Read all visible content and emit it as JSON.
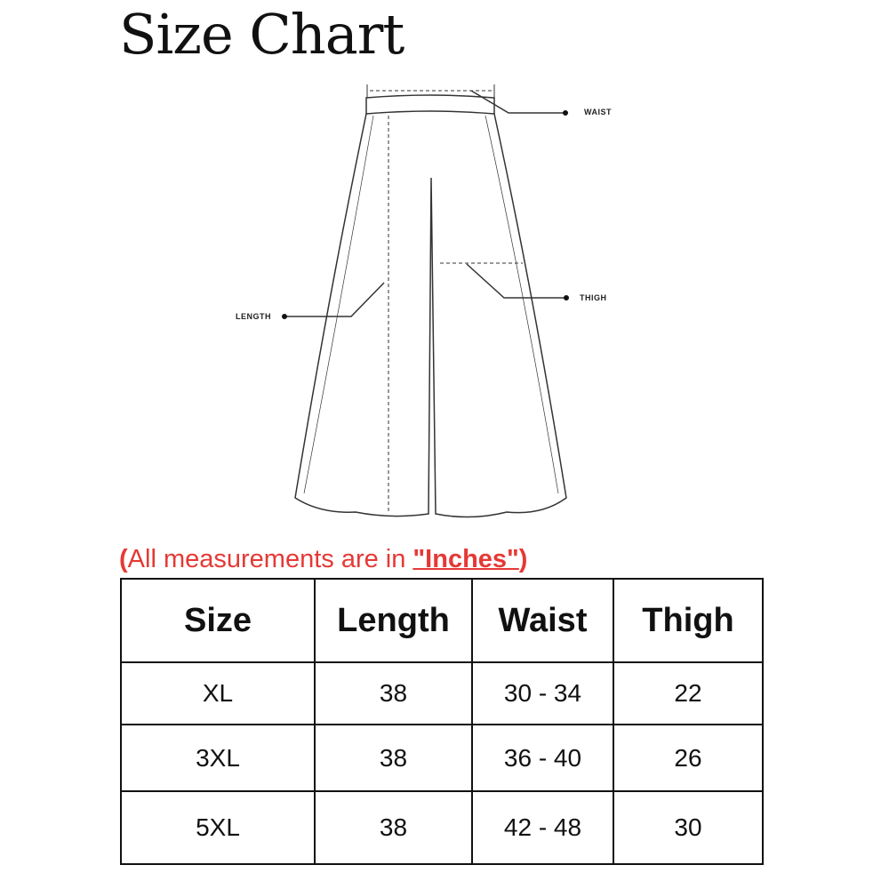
{
  "title": "Size Chart",
  "diagram": {
    "labels": {
      "waist": "WAIST",
      "thigh": "THIGH",
      "length": "LENGTH"
    }
  },
  "note": {
    "open": "(",
    "text": "All measurements are in ",
    "unit": "\"Inches\"",
    "close": ")",
    "color": "#e53935"
  },
  "table": {
    "headers": [
      "Size",
      "Length",
      "Waist",
      "Thigh"
    ],
    "rows": [
      [
        "XL",
        "38",
        "30 - 34",
        "22"
      ],
      [
        "3XL",
        "38",
        "36 - 40",
        "26"
      ],
      [
        "5XL",
        "38",
        "42 - 48",
        "30"
      ]
    ]
  }
}
